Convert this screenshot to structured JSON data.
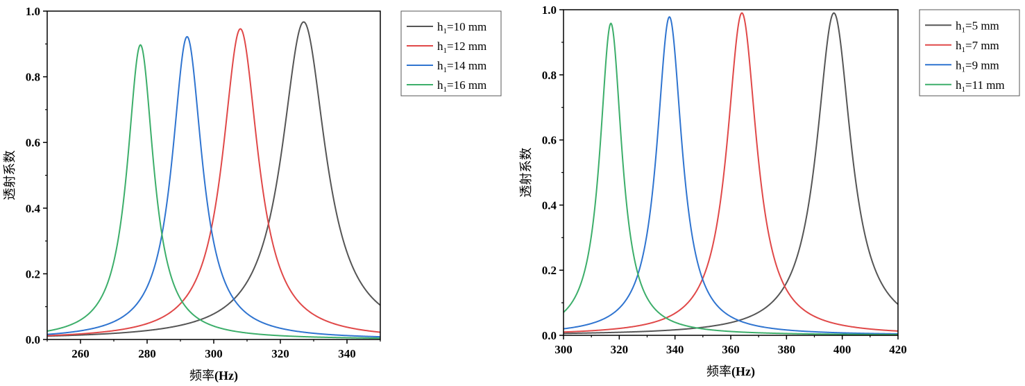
{
  "chart_data": [
    {
      "type": "line",
      "xlabel": "频率(Hz)",
      "ylabel": "透射系数",
      "xlim": [
        250,
        350
      ],
      "ylim": [
        0,
        1.0
      ],
      "xticks": [
        260,
        280,
        300,
        320,
        340
      ],
      "yticks": [
        0.0,
        0.2,
        0.4,
        0.6,
        0.8,
        1.0
      ],
      "xtick_labels": [
        "260",
        "280",
        "300",
        "320",
        "340"
      ],
      "ytick_labels": [
        "0.0",
        "0.2",
        "0.4",
        "0.6",
        "0.8",
        "1.0"
      ],
      "legend_position": "outside-right-top",
      "series": [
        {
          "legend": {
            "main": "h",
            "sub": "1",
            "rest": "=10 mm"
          },
          "color": "#555555",
          "peak_x": 327,
          "peak_y": 0.967,
          "width": 8.0
        },
        {
          "legend": {
            "main": "h",
            "sub": "1",
            "rest": "=12 mm"
          },
          "color": "#e04848",
          "peak_x": 308,
          "peak_y": 0.946,
          "width": 6.5
        },
        {
          "legend": {
            "main": "h",
            "sub": "1",
            "rest": "=14 mm"
          },
          "color": "#2f74d0",
          "peak_x": 292,
          "peak_y": 0.922,
          "width": 5.5
        },
        {
          "legend": {
            "main": "h",
            "sub": "1",
            "rest": "=16 mm"
          },
          "color": "#3cae6a",
          "peak_x": 278,
          "peak_y": 0.897,
          "width": 4.8
        }
      ]
    },
    {
      "type": "line",
      "xlabel": "频率(Hz)",
      "ylabel": "透射系数",
      "xlim": [
        300,
        420
      ],
      "ylim": [
        0,
        1.0
      ],
      "xticks": [
        300,
        320,
        340,
        360,
        380,
        400,
        420
      ],
      "yticks": [
        0.0,
        0.2,
        0.4,
        0.6,
        0.8,
        1.0
      ],
      "xtick_labels": [
        "300",
        "320",
        "340",
        "360",
        "380",
        "400",
        "420"
      ],
      "ytick_labels": [
        "0.0",
        "0.2",
        "0.4",
        "0.6",
        "0.8",
        "1.0"
      ],
      "legend_position": "outside-right-top",
      "series": [
        {
          "legend": {
            "main": "h",
            "sub": "1",
            "rest": "=5 mm"
          },
          "color": "#555555",
          "peak_x": 397,
          "peak_y": 0.99,
          "width": 7.5
        },
        {
          "legend": {
            "main": "h",
            "sub": "1",
            "rest": "=7 mm"
          },
          "color": "#e04848",
          "peak_x": 364,
          "peak_y": 0.99,
          "width": 6.5
        },
        {
          "legend": {
            "main": "h",
            "sub": "1",
            "rest": "=9 mm"
          },
          "color": "#2f74d0",
          "peak_x": 338,
          "peak_y": 0.978,
          "width": 5.5
        },
        {
          "legend": {
            "main": "h",
            "sub": "1",
            "rest": "=11 mm"
          },
          "color": "#3cae6a",
          "peak_x": 317,
          "peak_y": 0.958,
          "width": 4.8
        }
      ]
    }
  ]
}
